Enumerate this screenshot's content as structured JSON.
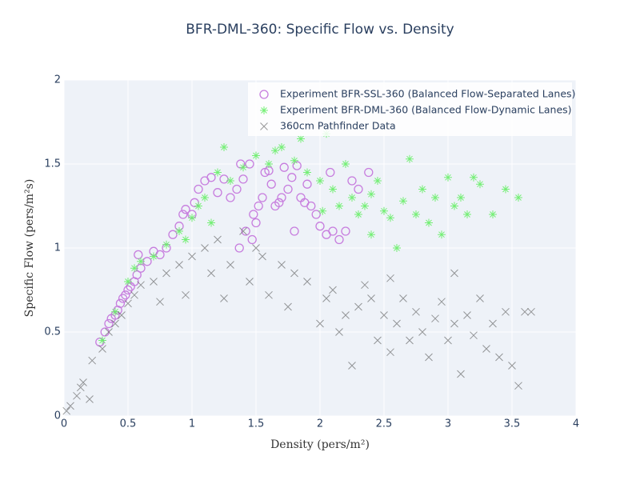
{
  "chart_data": {
    "type": "scatter",
    "title": "BFR-DML-360: Specific Flow vs. Density",
    "x_label": "Density (pers/m²)",
    "y_label": "Specific Flow (pers/m²s)",
    "xlim": [
      0,
      4
    ],
    "ylim": [
      0,
      2
    ],
    "xticks": [
      0,
      0.5,
      1,
      1.5,
      2,
      2.5,
      3,
      3.5,
      4
    ],
    "yticks": [
      0,
      0.5,
      1,
      1.5,
      2
    ],
    "grid": true,
    "legend": "top-right",
    "series": [
      {
        "name": "Experiment BFR-SSL-360 (Balanced Flow-Separated Lanes)",
        "color": "#c77dde",
        "marker": "circle",
        "x": [
          0.28,
          0.32,
          0.35,
          0.37,
          0.4,
          0.42,
          0.44,
          0.46,
          0.48,
          0.5,
          0.52,
          0.55,
          0.57,
          0.6,
          0.58,
          0.65,
          0.7,
          0.75,
          0.8,
          0.85,
          0.9,
          0.93,
          0.95,
          1.0,
          1.02,
          1.05,
          1.1,
          1.15,
          1.2,
          1.3,
          1.35,
          1.38,
          1.4,
          1.42,
          1.45,
          1.48,
          1.5,
          1.52,
          1.55,
          1.57,
          1.6,
          1.62,
          1.65,
          1.68,
          1.7,
          1.72,
          1.75,
          1.78,
          1.8,
          1.82,
          1.85,
          1.88,
          1.9,
          1.93,
          1.97,
          2.0,
          2.05,
          2.08,
          2.1,
          2.15,
          2.2,
          2.25,
          2.3,
          2.38,
          1.25,
          1.37,
          1.47
        ],
        "values": [
          0.44,
          0.5,
          0.55,
          0.58,
          0.6,
          0.63,
          0.67,
          0.7,
          0.72,
          0.75,
          0.77,
          0.8,
          0.84,
          0.88,
          0.96,
          0.92,
          0.98,
          0.96,
          1.0,
          1.08,
          1.13,
          1.2,
          1.23,
          1.2,
          1.27,
          1.35,
          1.4,
          1.42,
          1.33,
          1.3,
          1.35,
          1.5,
          1.41,
          1.1,
          1.5,
          1.2,
          1.15,
          1.25,
          1.3,
          1.45,
          1.46,
          1.38,
          1.25,
          1.27,
          1.3,
          1.48,
          1.35,
          1.42,
          1.1,
          1.49,
          1.3,
          1.27,
          1.38,
          1.25,
          1.2,
          1.13,
          1.08,
          1.45,
          1.1,
          1.05,
          1.1,
          1.4,
          1.35,
          1.45,
          1.41,
          1.0,
          1.05
        ]
      },
      {
        "name": "Experiment BFR-DML-360 (Balanced Flow-Dynamic Lanes)",
        "color": "#66ee66",
        "marker": "asterisk",
        "x": [
          0.3,
          0.4,
          0.5,
          0.55,
          0.6,
          0.7,
          0.8,
          0.9,
          1.0,
          1.05,
          1.1,
          1.2,
          1.25,
          1.3,
          1.4,
          1.5,
          1.6,
          1.65,
          1.7,
          1.8,
          1.85,
          1.9,
          2.0,
          2.05,
          2.1,
          2.15,
          2.2,
          2.25,
          2.3,
          2.35,
          2.4,
          2.45,
          2.5,
          2.55,
          2.6,
          2.65,
          2.7,
          2.75,
          2.8,
          2.85,
          2.9,
          2.95,
          3.0,
          3.05,
          3.1,
          3.15,
          3.2,
          3.25,
          3.35,
          3.45,
          3.55,
          1.15,
          0.95,
          2.02,
          2.4
        ],
        "values": [
          0.45,
          0.62,
          0.8,
          0.88,
          0.92,
          0.95,
          1.02,
          1.1,
          1.18,
          1.25,
          1.3,
          1.45,
          1.6,
          1.4,
          1.48,
          1.55,
          1.5,
          1.58,
          1.6,
          1.52,
          1.65,
          1.45,
          1.4,
          1.68,
          1.35,
          1.25,
          1.5,
          1.3,
          1.2,
          1.25,
          1.32,
          1.4,
          1.22,
          1.18,
          1.0,
          1.28,
          1.53,
          1.2,
          1.35,
          1.15,
          1.3,
          1.08,
          1.42,
          1.25,
          1.3,
          1.2,
          1.42,
          1.38,
          1.2,
          1.35,
          1.3,
          1.15,
          1.05,
          1.22,
          1.08
        ]
      },
      {
        "name": "360cm Pathfinder Data",
        "color": "#555555",
        "marker": "x",
        "x": [
          0.02,
          0.05,
          0.1,
          0.13,
          0.15,
          0.2,
          0.22,
          0.3,
          0.35,
          0.4,
          0.45,
          0.5,
          0.55,
          0.6,
          0.7,
          0.8,
          0.9,
          0.95,
          1.0,
          1.1,
          1.15,
          1.2,
          1.3,
          1.4,
          1.45,
          1.5,
          1.55,
          1.6,
          1.7,
          1.75,
          1.8,
          1.9,
          2.0,
          2.05,
          2.1,
          2.15,
          2.2,
          2.25,
          2.3,
          2.4,
          2.45,
          2.5,
          2.55,
          2.6,
          2.65,
          2.7,
          2.75,
          2.8,
          2.85,
          2.9,
          2.95,
          3.0,
          3.05,
          3.1,
          3.15,
          3.2,
          3.25,
          3.3,
          3.35,
          3.4,
          3.45,
          3.5,
          3.55,
          3.6,
          3.65,
          1.25,
          0.75,
          2.35,
          2.55,
          3.05
        ],
        "values": [
          0.03,
          0.06,
          0.12,
          0.17,
          0.2,
          0.1,
          0.33,
          0.4,
          0.5,
          0.55,
          0.6,
          0.67,
          0.72,
          0.78,
          0.8,
          0.85,
          0.9,
          0.72,
          0.95,
          1.0,
          0.85,
          1.05,
          0.9,
          1.1,
          0.8,
          1.0,
          0.95,
          0.72,
          0.9,
          0.65,
          0.85,
          0.8,
          0.55,
          0.7,
          0.75,
          0.5,
          0.6,
          0.3,
          0.65,
          0.7,
          0.45,
          0.6,
          0.38,
          0.55,
          0.7,
          0.45,
          0.62,
          0.5,
          0.35,
          0.58,
          0.68,
          0.45,
          0.55,
          0.25,
          0.6,
          0.48,
          0.7,
          0.4,
          0.55,
          0.35,
          0.62,
          0.3,
          0.18,
          0.62,
          0.62,
          0.7,
          0.68,
          0.78,
          0.82,
          0.85
        ]
      }
    ]
  }
}
